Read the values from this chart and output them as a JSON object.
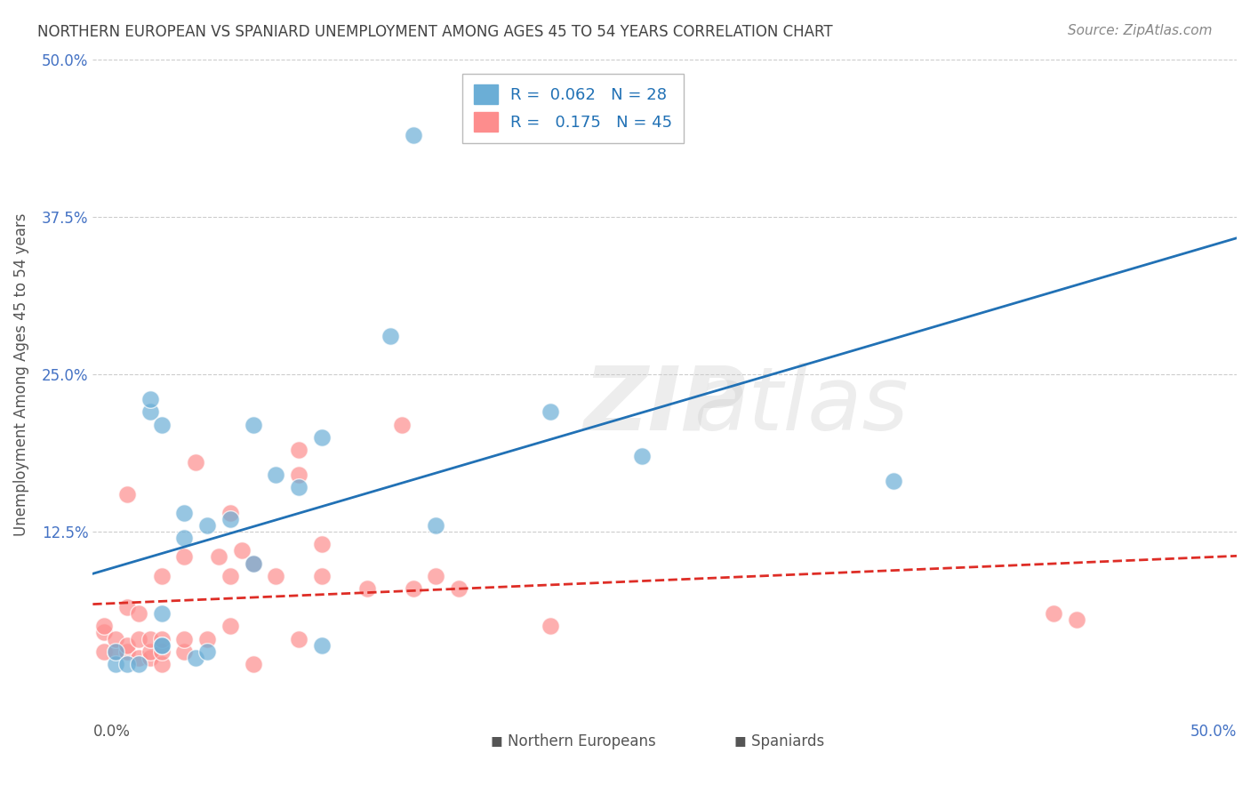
{
  "title": "NORTHERN EUROPEAN VS SPANIARD UNEMPLOYMENT AMONG AGES 45 TO 54 YEARS CORRELATION CHART",
  "source": "Source: ZipAtlas.com",
  "ylabel": "Unemployment Among Ages 45 to 54 years",
  "xlabel_bottom_left": "0.0%",
  "xlabel_bottom_right": "50.0%",
  "xlim": [
    0.0,
    0.5
  ],
  "ylim": [
    0.0,
    0.5
  ],
  "yticks": [
    0.0,
    0.125,
    0.25,
    0.375,
    0.5
  ],
  "ytick_labels": [
    "",
    "12.5%",
    "25.0%",
    "37.5%",
    "50.0%"
  ],
  "legend_blue_r": "0.062",
  "legend_blue_n": "28",
  "legend_pink_r": "0.175",
  "legend_pink_n": "45",
  "blue_color": "#6baed6",
  "pink_color": "#fd8d8d",
  "blue_line_color": "#2171b5",
  "pink_line_color": "#de2d26",
  "background_color": "#ffffff",
  "grid_color": "#cccccc",
  "title_color": "#444444",
  "axis_label_color": "#555555",
  "watermark_color": "#cccccc",
  "northern_europeans_x": [
    0.01,
    0.01,
    0.015,
    0.02,
    0.025,
    0.025,
    0.03,
    0.03,
    0.03,
    0.03,
    0.04,
    0.04,
    0.045,
    0.05,
    0.05,
    0.06,
    0.07,
    0.07,
    0.08,
    0.09,
    0.1,
    0.1,
    0.13,
    0.14,
    0.15,
    0.2,
    0.24,
    0.35
  ],
  "northern_europeans_y": [
    0.02,
    0.03,
    0.02,
    0.02,
    0.22,
    0.23,
    0.035,
    0.035,
    0.06,
    0.21,
    0.12,
    0.14,
    0.025,
    0.03,
    0.13,
    0.135,
    0.1,
    0.21,
    0.17,
    0.16,
    0.035,
    0.2,
    0.28,
    0.44,
    0.13,
    0.22,
    0.185,
    0.165
  ],
  "spaniards_x": [
    0.005,
    0.005,
    0.005,
    0.01,
    0.01,
    0.015,
    0.015,
    0.015,
    0.015,
    0.02,
    0.02,
    0.02,
    0.025,
    0.025,
    0.025,
    0.03,
    0.03,
    0.03,
    0.03,
    0.04,
    0.04,
    0.04,
    0.045,
    0.05,
    0.055,
    0.06,
    0.06,
    0.06,
    0.065,
    0.07,
    0.07,
    0.08,
    0.09,
    0.09,
    0.09,
    0.1,
    0.1,
    0.12,
    0.135,
    0.14,
    0.15,
    0.16,
    0.2,
    0.42,
    0.43
  ],
  "spaniards_y": [
    0.03,
    0.045,
    0.05,
    0.03,
    0.04,
    0.03,
    0.035,
    0.065,
    0.155,
    0.025,
    0.04,
    0.06,
    0.025,
    0.03,
    0.04,
    0.02,
    0.03,
    0.04,
    0.09,
    0.03,
    0.04,
    0.105,
    0.18,
    0.04,
    0.105,
    0.05,
    0.09,
    0.14,
    0.11,
    0.02,
    0.1,
    0.09,
    0.04,
    0.17,
    0.19,
    0.09,
    0.115,
    0.08,
    0.21,
    0.08,
    0.09,
    0.08,
    0.05,
    0.06,
    0.055
  ]
}
